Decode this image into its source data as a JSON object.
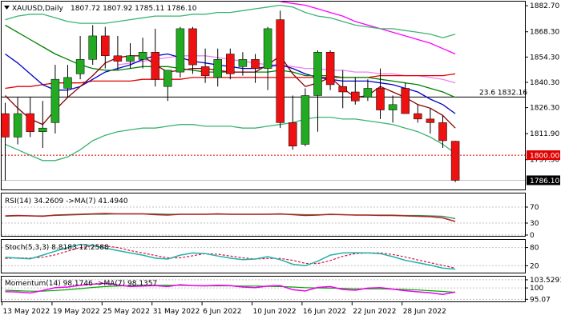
{
  "chart_data": {
    "type": "candlestick",
    "symbol_header": {
      "symbol_label": "XAUUSD,Daily",
      "ohlc_text": "1807.72 1807.92 1785.11 1786.10"
    },
    "x_tick_labels": [
      "13 May 2022",
      "19 May 2022",
      "25 May 2022",
      "31 May 2022",
      "6 Jun 2022",
      "10 Jun 2022",
      "16 Jun 2022",
      "22 Jun 2022",
      "28 Jun 2022"
    ],
    "price_ticks": [
      1882.7,
      1868.3,
      1854.3,
      1840.3,
      1826.3,
      1811.9,
      1797.5
    ],
    "price_range": [
      1781,
      1885
    ],
    "candles": [
      {
        "o": 1823,
        "h": 1829,
        "l": 1786,
        "c": 1810
      },
      {
        "o": 1810,
        "h": 1832,
        "l": 1806,
        "c": 1823
      },
      {
        "o": 1823,
        "h": 1832,
        "l": 1810,
        "c": 1813
      },
      {
        "o": 1813,
        "h": 1830,
        "l": 1804,
        "c": 1815
      },
      {
        "o": 1818,
        "h": 1850,
        "l": 1812,
        "c": 1842
      },
      {
        "o": 1837,
        "h": 1850,
        "l": 1832,
        "c": 1843
      },
      {
        "o": 1845,
        "h": 1866,
        "l": 1842,
        "c": 1853
      },
      {
        "o": 1853,
        "h": 1872,
        "l": 1850,
        "c": 1866
      },
      {
        "o": 1866,
        "h": 1871,
        "l": 1848,
        "c": 1855
      },
      {
        "o": 1855,
        "h": 1866,
        "l": 1847,
        "c": 1852
      },
      {
        "o": 1852,
        "h": 1862,
        "l": 1848,
        "c": 1855
      },
      {
        "o": 1853,
        "h": 1865,
        "l": 1848,
        "c": 1857
      },
      {
        "o": 1857,
        "h": 1870,
        "l": 1838,
        "c": 1842
      },
      {
        "o": 1838,
        "h": 1847,
        "l": 1830,
        "c": 1847
      },
      {
        "o": 1846,
        "h": 1871,
        "l": 1843,
        "c": 1870
      },
      {
        "o": 1870,
        "h": 1871,
        "l": 1845,
        "c": 1850
      },
      {
        "o": 1849,
        "h": 1859,
        "l": 1840,
        "c": 1844
      },
      {
        "o": 1843,
        "h": 1859,
        "l": 1838,
        "c": 1853
      },
      {
        "o": 1856,
        "h": 1859,
        "l": 1842,
        "c": 1845
      },
      {
        "o": 1849,
        "h": 1857,
        "l": 1844,
        "c": 1853
      },
      {
        "o": 1853,
        "h": 1856,
        "l": 1840,
        "c": 1848
      },
      {
        "o": 1848,
        "h": 1871,
        "l": 1836,
        "c": 1870
      },
      {
        "o": 1875,
        "h": 1880,
        "l": 1815,
        "c": 1818
      },
      {
        "o": 1818,
        "h": 1833,
        "l": 1803,
        "c": 1805
      },
      {
        "o": 1806,
        "h": 1837,
        "l": 1805,
        "c": 1833
      },
      {
        "o": 1833,
        "h": 1858,
        "l": 1813,
        "c": 1857
      },
      {
        "o": 1857,
        "h": 1858,
        "l": 1836,
        "c": 1839
      },
      {
        "o": 1838,
        "h": 1847,
        "l": 1826,
        "c": 1835
      },
      {
        "o": 1835,
        "h": 1843,
        "l": 1828,
        "c": 1830
      },
      {
        "o": 1832,
        "h": 1842,
        "l": 1830,
        "c": 1837
      },
      {
        "o": 1837,
        "h": 1848,
        "l": 1820,
        "c": 1825
      },
      {
        "o": 1825,
        "h": 1833,
        "l": 1818,
        "c": 1828
      },
      {
        "o": 1837,
        "h": 1840,
        "l": 1823,
        "c": 1823
      },
      {
        "o": 1823,
        "h": 1828,
        "l": 1818,
        "c": 1820
      },
      {
        "o": 1820,
        "h": 1826,
        "l": 1812,
        "c": 1818
      },
      {
        "o": 1818,
        "h": 1822,
        "l": 1804,
        "c": 1808
      },
      {
        "o": 1807.72,
        "h": 1807.92,
        "l": 1785.11,
        "c": 1786.1
      }
    ],
    "overlay_lines": [
      {
        "color": "#ff00ff",
        "values": [
          null,
          null,
          null,
          null,
          null,
          null,
          null,
          null,
          null,
          null,
          null,
          null,
          null,
          null,
          null,
          null,
          null,
          null,
          null,
          null,
          null,
          null,
          1885,
          1884,
          1883,
          1881,
          1879,
          1877,
          1874,
          1872,
          1870,
          1868,
          1866,
          1864,
          1862,
          1859,
          1856
        ]
      },
      {
        "color": "#ee82ee",
        "values": [
          null,
          null,
          null,
          null,
          null,
          null,
          null,
          null,
          null,
          1850,
          1851,
          1852,
          1853,
          1854,
          1855,
          1855,
          1855,
          1854,
          1853,
          1852,
          1851,
          1850,
          1850,
          1849,
          1848,
          1848,
          1847,
          1847,
          1846,
          1846,
          1845,
          1845,
          1844,
          1844,
          1843,
          1842,
          1840
        ]
      },
      {
        "color": "#e00000",
        "values": [
          1837,
          1838,
          1838,
          1839,
          1840,
          1840,
          1840,
          1841,
          1841,
          1841,
          1841,
          1842,
          1842,
          1842,
          1842,
          1843,
          1843,
          1843,
          1843,
          1843,
          1843,
          1843,
          1843,
          1843,
          1843,
          1843,
          1843,
          1843,
          1843,
          1843,
          1844,
          1844,
          1844,
          1844,
          1844,
          1844,
          1845
        ]
      },
      {
        "color": "#0000cc",
        "values": [
          1856,
          1851,
          1845,
          1839,
          1836,
          1836,
          1838,
          1842,
          1846,
          1848,
          1850,
          1853,
          1855,
          1856,
          1854,
          1852,
          1851,
          1850,
          1849,
          1848,
          1848,
          1849,
          1850,
          1848,
          1845,
          1843,
          1842,
          1841,
          1841,
          1841,
          1840,
          1839,
          1837,
          1835,
          1831,
          1828,
          1823
        ]
      },
      {
        "color": "#008000",
        "values": [
          1872,
          1868,
          1864,
          1860,
          1856,
          1853,
          1850,
          1848,
          1847,
          1847,
          1848,
          1849,
          1849,
          1849,
          1848,
          1847,
          1846,
          1846,
          1846,
          1846,
          1846,
          1846,
          1847,
          1846,
          1844,
          1844,
          1844,
          1843,
          1843,
          1843,
          1842,
          1841,
          1840,
          1839,
          1837,
          1835,
          1832
        ]
      },
      {
        "color": "#8b0000",
        "values": [
          1833,
          1826,
          1820,
          1817,
          1825,
          1832,
          1838,
          1844,
          1851,
          1854,
          1855,
          1855,
          1850,
          1846,
          1847,
          1848,
          1848,
          1847,
          1846,
          1846,
          1846,
          1850,
          1855,
          1845,
          1838,
          1840,
          1843,
          1837,
          1832,
          1833,
          1838,
          1835,
          1832,
          1828,
          1826,
          1822,
          1815
        ]
      },
      {
        "color": "#3cb371",
        "values": [
          1806,
          1803,
          1800,
          1797,
          1797,
          1799,
          1803,
          1808,
          1811,
          1813,
          1814,
          1815,
          1815,
          1816,
          1817,
          1817,
          1816,
          1816,
          1816,
          1815,
          1815,
          1816,
          1817,
          1818,
          1820,
          1821,
          1821,
          1820,
          1820,
          1819,
          1818,
          1817,
          1815,
          1813,
          1810,
          1806,
          1801
        ]
      },
      {
        "color": "#3cb371",
        "values": [
          1875,
          1877,
          1878,
          1878,
          1876,
          1874,
          1873,
          1873,
          1873,
          1874,
          1875,
          1876,
          1877,
          1877,
          1877,
          1878,
          1878,
          1879,
          1879,
          1880,
          1881,
          1882,
          1883,
          1882,
          1879,
          1877,
          1876,
          1874,
          1872,
          1871,
          1870,
          1870,
          1869,
          1868,
          1867,
          1865,
          1867
        ]
      }
    ],
    "level_line": {
      "label": "23.6 1832.16",
      "value": 1832.16
    },
    "marker_line": {
      "label": "1800.00",
      "value": 1800.0,
      "color": "#e00000"
    },
    "current_price": {
      "label": "1786.10",
      "value": 1786.1
    },
    "rsi": {
      "header_label": "RSI(14) 34.2609 ->MA(7) 41.4940",
      "ticks": [
        "70",
        "30",
        "0"
      ],
      "tick_values": [
        70,
        30,
        0
      ],
      "range": [
        0,
        100
      ],
      "rsi_values": [
        48,
        49,
        48,
        47,
        50,
        51,
        52,
        53,
        54,
        53,
        53,
        53,
        51,
        50,
        52,
        52,
        52,
        53,
        52,
        52,
        52,
        52,
        53,
        51,
        49,
        50,
        52,
        51,
        50,
        50,
        49,
        49,
        48,
        47,
        46,
        43,
        34
      ],
      "ma_values": [
        47,
        48,
        48,
        48,
        49,
        50,
        51,
        52,
        52,
        53,
        53,
        53,
        53,
        52,
        52,
        52,
        52,
        52,
        52,
        52,
        52,
        52,
        52,
        52,
        51,
        51,
        51,
        51,
        50,
        50,
        50,
        50,
        49,
        49,
        48,
        47,
        41
      ]
    },
    "stoch": {
      "header_label": "Stoch(5,3,3) 8.8183 12.2588",
      "ticks": [
        "80",
        "20"
      ],
      "tick_values": [
        80,
        20
      ],
      "range": [
        0,
        100
      ],
      "k_values": [
        48,
        45,
        43,
        55,
        68,
        80,
        90,
        86,
        78,
        70,
        62,
        55,
        45,
        42,
        55,
        62,
        60,
        52,
        45,
        40,
        42,
        50,
        40,
        25,
        20,
        35,
        55,
        62,
        63,
        62,
        60,
        50,
        38,
        30,
        22,
        12,
        9
      ],
      "d_values": [
        44,
        46,
        45,
        48,
        56,
        68,
        80,
        85,
        85,
        80,
        70,
        62,
        54,
        46,
        46,
        53,
        60,
        58,
        52,
        46,
        42,
        44,
        44,
        38,
        28,
        27,
        37,
        51,
        60,
        62,
        62,
        57,
        49,
        39,
        30,
        21,
        12
      ]
    },
    "momentum": {
      "header_label": "Momentum(14) 98.1746 ->MA(7) 98.1357",
      "ticks": [
        "103.5291",
        "100",
        "95.07"
      ],
      "tick_values": [
        103.53,
        100,
        95.07
      ],
      "range": [
        94.5,
        104.2
      ],
      "mom_values": [
        98.4,
        98.2,
        97.8,
        98.9,
        100.1,
        100.4,
        101.1,
        101.6,
        102.0,
        101.3,
        100.6,
        100.8,
        101.0,
        100.6,
        101.4,
        101.0,
        100.9,
        101.2,
        101.0,
        100.4,
        100.1,
        100.8,
        101.0,
        99.2,
        98.7,
        100.2,
        100.6,
        99.3,
        99.0,
        99.9,
        100.1,
        99.5,
        98.8,
        98.3,
        97.9,
        97.2,
        98.2
      ],
      "ma_values": [
        99.0,
        98.8,
        98.6,
        98.6,
        98.9,
        99.2,
        99.7,
        100.2,
        100.6,
        100.8,
        101.0,
        101.1,
        101.1,
        101.1,
        101.1,
        101.0,
        100.9,
        100.9,
        100.9,
        100.8,
        100.8,
        100.7,
        100.6,
        100.4,
        100.1,
        100.0,
        99.9,
        99.8,
        99.6,
        99.6,
        99.6,
        99.5,
        99.3,
        99.1,
        98.8,
        98.5,
        98.1
      ]
    }
  }
}
